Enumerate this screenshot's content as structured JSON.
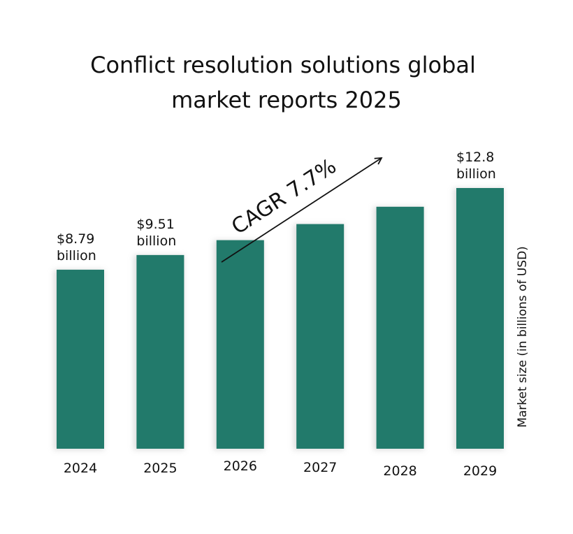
{
  "chart_data": {
    "type": "bar",
    "title_lines": [
      "Conflict resolution solutions global",
      "market reports 2025"
    ],
    "categories": [
      "2024",
      "2025",
      "2026",
      "2027",
      "2028",
      "2029"
    ],
    "values": [
      8.79,
      9.51,
      10.24,
      11.03,
      11.88,
      12.8
    ],
    "data_labels": [
      [
        "$8.79",
        "billion"
      ],
      [
        "$9.51",
        "billion"
      ],
      null,
      null,
      null,
      [
        "$12.8",
        "billion"
      ]
    ],
    "ylabel": "Market size (in billions of USD)",
    "annotation": "CAGR 7.7%",
    "bar_color": "#227a6b",
    "annotation_color": "#2b9a7a",
    "grid": false
  }
}
